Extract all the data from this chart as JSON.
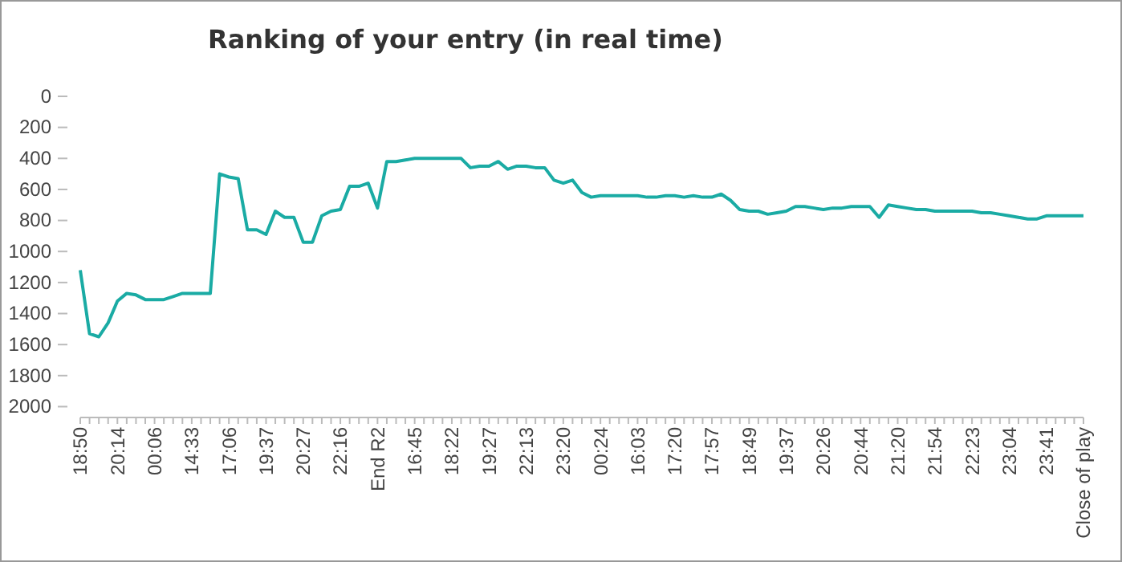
{
  "chart_data": {
    "type": "line",
    "title": "Ranking of your entry (in real time)",
    "categories": [
      "18:50",
      null,
      null,
      null,
      "20:14",
      null,
      null,
      null,
      "00:06",
      null,
      null,
      null,
      "14:33",
      null,
      null,
      null,
      "17:06",
      null,
      null,
      null,
      "19:37",
      null,
      null,
      null,
      "20:27",
      null,
      null,
      null,
      "22:16",
      null,
      null,
      null,
      "End R2",
      null,
      null,
      null,
      "16:45",
      null,
      null,
      null,
      "18:22",
      null,
      null,
      null,
      "19:27",
      null,
      null,
      null,
      "22:13",
      null,
      null,
      null,
      "23:20",
      null,
      null,
      null,
      "00:24",
      null,
      null,
      null,
      "16:03",
      null,
      null,
      null,
      "17:20",
      null,
      null,
      null,
      "17:57",
      null,
      null,
      null,
      "18:49",
      null,
      null,
      null,
      "19:37",
      null,
      null,
      null,
      "20:26",
      null,
      null,
      null,
      "20:44",
      null,
      null,
      null,
      "21:20",
      null,
      null,
      null,
      "21:54",
      null,
      null,
      null,
      "22:23",
      null,
      null,
      null,
      "23:04",
      null,
      null,
      null,
      "23:41",
      null,
      null,
      null,
      "Close of play"
    ],
    "series": [
      {
        "color": "#1aaba4",
        "values": [
          1120,
          1530,
          1550,
          1460,
          1320,
          1270,
          1280,
          1310,
          1310,
          1310,
          1290,
          1270,
          1270,
          1270,
          1270,
          500,
          520,
          530,
          860,
          860,
          890,
          740,
          780,
          780,
          940,
          940,
          770,
          740,
          730,
          580,
          580,
          560,
          720,
          420,
          420,
          410,
          400,
          400,
          400,
          400,
          400,
          400,
          460,
          450,
          450,
          420,
          470,
          450,
          450,
          460,
          460,
          540,
          560,
          540,
          620,
          650,
          640,
          640,
          640,
          640,
          640,
          650,
          650,
          640,
          640,
          650,
          640,
          650,
          650,
          630,
          670,
          730,
          740,
          740,
          760,
          750,
          740,
          710,
          710,
          720,
          730,
          720,
          720,
          710,
          710,
          710,
          780,
          700,
          710,
          720,
          730,
          730,
          740,
          740,
          740,
          740,
          740,
          750,
          750,
          760,
          770,
          780,
          790,
          790,
          770,
          770,
          770,
          770,
          770
        ]
      }
    ],
    "ylim": [
      2070,
      0
    ],
    "yticks": [
      0,
      200,
      400,
      600,
      800,
      1000,
      1200,
      1400,
      1600,
      1800,
      2000
    ],
    "grid": false,
    "marker": "none",
    "line_style": "solid"
  }
}
